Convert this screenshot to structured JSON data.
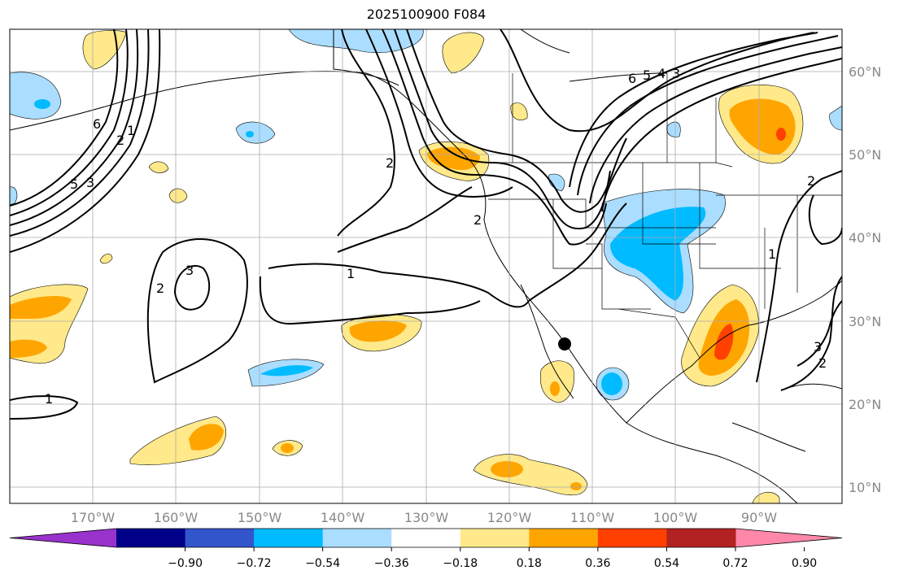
{
  "title": "2025100900 F084",
  "axes": {
    "lon_labels": [
      "170°W",
      "160°W",
      "150°W",
      "140°W",
      "130°W",
      "120°W",
      "110°W",
      "100°W",
      "90°W"
    ],
    "lat_labels": [
      "60°N",
      "50°N",
      "40°N",
      "30°N",
      "20°N",
      "10°N"
    ]
  },
  "colorbar": {
    "colors": [
      "#9933cc",
      "#000088",
      "#3355cc",
      "#00bbff",
      "#aaddff",
      "#ffffff",
      "#ffe98a",
      "#ffa500",
      "#ff4000",
      "#b22222",
      "#ff88aa"
    ],
    "ticks": [
      "−0.90",
      "−0.72",
      "−0.54",
      "−0.36",
      "−0.18",
      "0.18",
      "0.36",
      "0.54",
      "0.72",
      "0.90"
    ]
  },
  "contour_labels": [
    "1",
    "1",
    "2",
    "3",
    "2",
    "2",
    "1",
    "2",
    "3",
    "5",
    "6",
    "6",
    "5",
    "4",
    "3",
    "2",
    "3",
    "2",
    "1"
  ],
  "marker": "storm-center-dot"
}
